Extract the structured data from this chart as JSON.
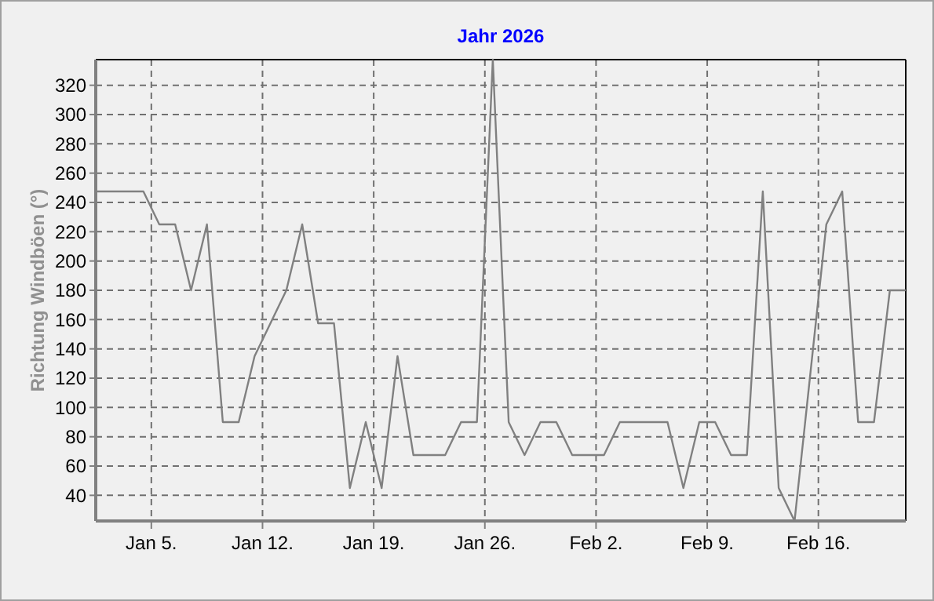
{
  "chart_data": {
    "type": "line",
    "title": "Jahr 2026",
    "ylabel": "Richtung Windböen  (°)",
    "x": [
      "2026-01-01T12:00",
      "2026-01-04T12:00",
      "2026-01-05T12:00",
      "2026-01-06T12:00",
      "2026-01-07T12:00",
      "2026-01-08T12:00",
      "2026-01-09T12:00",
      "2026-01-10T12:00",
      "2026-01-11T12:00",
      "2026-01-13T12:00",
      "2026-01-14T12:00",
      "2026-01-15T12:00",
      "2026-01-16T12:00",
      "2026-01-17T12:00",
      "2026-01-18T12:00",
      "2026-01-19T12:00",
      "2026-01-20T12:00",
      "2026-01-21T12:00",
      "2026-01-23T12:00",
      "2026-01-24T12:00",
      "2026-01-25T12:00",
      "2026-01-26T12:00",
      "2026-01-27T12:00",
      "2026-01-28T12:00",
      "2026-01-29T12:00",
      "2026-01-30T12:00",
      "2026-01-31T12:00",
      "2026-02-02T12:00",
      "2026-02-03T12:00",
      "2026-02-06T12:00",
      "2026-02-07T12:00",
      "2026-02-08T12:00",
      "2026-02-09T12:00",
      "2026-02-10T12:00",
      "2026-02-11T12:00",
      "2026-02-12T12:00",
      "2026-02-13T12:00",
      "2026-02-14T12:00",
      "2026-02-16T12:00",
      "2026-02-17T12:00",
      "2026-02-18T12:00",
      "2026-02-19T12:00",
      "2026-02-20T12:00",
      "2026-02-21T12:00"
    ],
    "series": [
      {
        "color": "#808080",
        "values": [
          247.5,
          247.5,
          225,
          225,
          180,
          225,
          90,
          90,
          135,
          180,
          225,
          157.5,
          157.5,
          45,
          90,
          45,
          135,
          67.5,
          67.5,
          90,
          90,
          337.5,
          90,
          67.5,
          90,
          90,
          67.5,
          67.5,
          90,
          90,
          45,
          90,
          90,
          67.5,
          67.5,
          247.5,
          45,
          22.5,
          225,
          247.5,
          90,
          90,
          180,
          180
        ]
      }
    ],
    "xlim": [
      "2026-01-01T12:00",
      "2026-02-21T12:00"
    ],
    "xticks": [
      {
        "value": "2026-01-05",
        "label": "Jan 5."
      },
      {
        "value": "2026-01-12",
        "label": "Jan 12."
      },
      {
        "value": "2026-01-19",
        "label": "Jan 19."
      },
      {
        "value": "2026-01-26",
        "label": "Jan 26."
      },
      {
        "value": "2026-02-02",
        "label": "Feb 2."
      },
      {
        "value": "2026-02-09",
        "label": "Feb 9."
      },
      {
        "value": "2026-02-16",
        "label": "Feb 16."
      }
    ],
    "ylim": [
      22.5,
      337.5
    ],
    "yticks": [
      40,
      60,
      80,
      100,
      120,
      140,
      160,
      180,
      200,
      220,
      240,
      260,
      280,
      300,
      320
    ],
    "grid": true,
    "marker": "none",
    "line_style": "solid"
  }
}
